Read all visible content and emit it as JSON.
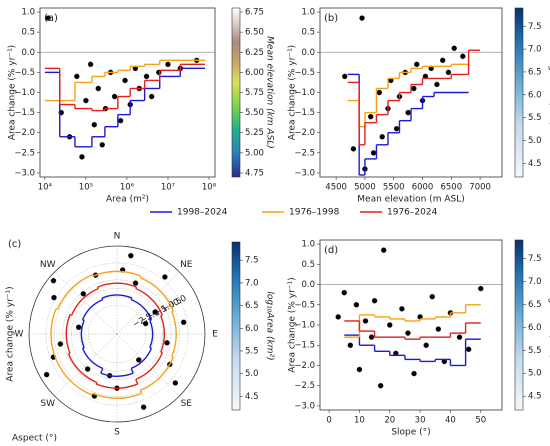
{
  "chart_data": [
    {
      "type": "scatter",
      "label": "(a)",
      "xlabel": "Area (m²)",
      "ylabel": "Area change (% yr⁻¹)",
      "xscale": "log",
      "xlim": [
        7600,
        140000000
      ],
      "xticks": [
        {
          "value": 10000,
          "label": "10⁴"
        },
        {
          "value": 100000,
          "label": "10⁵"
        },
        {
          "value": 1000000,
          "label": "10⁶"
        },
        {
          "value": 10000000,
          "label": "10⁷"
        },
        {
          "value": 100000000,
          "label": "10⁸"
        }
      ],
      "ylim": [
        -3.1,
        1.1
      ],
      "yticks": [
        {
          "value": -3,
          "label": "−3.0"
        },
        {
          "value": -2.5,
          "label": "−2.5"
        },
        {
          "value": -2,
          "label": "−2.0"
        },
        {
          "value": -1.5,
          "label": "−1.5"
        },
        {
          "value": -1,
          "label": "−1.0"
        },
        {
          "value": -0.5,
          "label": "−0.5"
        },
        {
          "value": 0,
          "label": "0.0"
        },
        {
          "value": 0.5,
          "label": "0.5"
        },
        {
          "value": 1,
          "label": "1.0"
        }
      ],
      "hline": 0,
      "colorbar": {
        "label": "Mean elevation (km ASL)",
        "colormap": "terrain",
        "clim": [
          4.7,
          6.8
        ],
        "ticks": [
          4.75,
          {
            "value": 5,
            "label": "5.00"
          },
          5.25,
          {
            "value": 5.5,
            "label": "5.50"
          },
          5.75,
          {
            "value": 6,
            "label": "6.00"
          },
          6.25,
          {
            "value": 6.5,
            "label": "6.50"
          },
          6.75
        ]
      },
      "points": {
        "x": [
          12000,
          25000,
          40000,
          60000,
          80000,
          100000,
          130000,
          160000,
          200000,
          250000,
          300000,
          400000,
          500000,
          700000,
          900000,
          1200000,
          1600000,
          2000000,
          3000000,
          4000000,
          6000000,
          10000000,
          20000000,
          50000000
        ],
        "y": [
          0.85,
          -1.5,
          -2.1,
          -0.6,
          -2.6,
          -1.2,
          -0.3,
          -1.8,
          -0.9,
          -2.3,
          -1.4,
          -0.5,
          -1.1,
          -1.7,
          -0.7,
          -1.3,
          -0.4,
          -0.9,
          -0.6,
          -1.1,
          -0.5,
          -0.3,
          -0.4,
          -0.2
        ],
        "c": [
          4.8,
          5.3,
          5.2,
          5.6,
          5.1,
          5.5,
          6.0,
          5.3,
          5.7,
          5.0,
          5.4,
          6.2,
          5.6,
          5.2,
          5.9,
          5.5,
          6.3,
          5.8,
          6.1,
          5.6,
          6.0,
          6.4,
          6.3,
          6.5
        ]
      },
      "series": [
        {
          "name": "1998–2024",
          "color": "#1a1ad8",
          "bins": [
            10000,
            23000,
            54000,
            140000,
            290000,
            600000,
            1200000,
            2700000,
            6300000,
            20000000,
            80000000
          ],
          "values": [
            -0.5,
            -2.1,
            -2.35,
            -2.1,
            -1.85,
            -1.55,
            -1.2,
            -0.9,
            -0.6,
            -0.4
          ]
        },
        {
          "name": "1976–1998",
          "color": "#f5a219",
          "bins": [
            10000,
            23000,
            54000,
            140000,
            290000,
            600000,
            1200000,
            2700000,
            6300000,
            20000000,
            80000000
          ],
          "values": [
            -1.2,
            -1.2,
            -0.75,
            -0.6,
            -0.5,
            -0.45,
            -0.35,
            -0.3,
            -0.2,
            -0.2
          ]
        },
        {
          "name": "1976–2024",
          "color": "#e3201b",
          "bins": [
            10000,
            23000,
            54000,
            140000,
            290000,
            600000,
            1200000,
            2700000,
            6300000,
            20000000,
            80000000
          ],
          "values": [
            -0.4,
            -1.3,
            -1.4,
            -1.45,
            -1.4,
            -1.1,
            -0.9,
            -0.7,
            -0.45,
            -0.3
          ]
        }
      ]
    },
    {
      "type": "scatter",
      "label": "(b)",
      "xlabel": "Mean elevation (m ASL)",
      "ylabel": "Area change (% yr⁻¹)",
      "xlim": [
        4220,
        7380
      ],
      "xticks": [
        4500,
        5000,
        5500,
        6000,
        6500,
        7000
      ],
      "ylim": [
        -3.1,
        1.1
      ],
      "yticks": [
        {
          "value": -3,
          "label": "−3.0"
        },
        {
          "value": -2.5,
          "label": "−2.5"
        },
        {
          "value": -2,
          "label": "−2.0"
        },
        {
          "value": -1.5,
          "label": "−1.5"
        },
        {
          "value": -1,
          "label": "−1.0"
        },
        {
          "value": -0.5,
          "label": "−0.5"
        },
        {
          "value": 0,
          "label": "0.0"
        },
        {
          "value": 0.5,
          "label": "0.5"
        },
        {
          "value": 1,
          "label": "1.0"
        }
      ],
      "hline": 0,
      "colorbar": {
        "label": "log₁₀Area (km²)",
        "colormap": "blues",
        "clim": [
          4.2,
          7.9
        ],
        "ticks": [
          4.5,
          {
            "value": 5,
            "label": "5.0"
          },
          5.5,
          {
            "value": 6,
            "label": "6.0"
          },
          6.5,
          {
            "value": 7,
            "label": "7.0"
          },
          7.5
        ]
      },
      "points": {
        "x": [
          4650,
          4800,
          4950,
          5000,
          5100,
          5150,
          5250,
          5300,
          5400,
          5450,
          5550,
          5600,
          5700,
          5750,
          5850,
          5900,
          6000,
          6050,
          6150,
          6250,
          6350,
          6450,
          6550,
          6700
        ],
        "y": [
          -0.6,
          -2.4,
          0.85,
          -2.9,
          -1.6,
          -2.5,
          -1.0,
          -2.1,
          -1.4,
          -0.7,
          -1.9,
          -1.1,
          -0.5,
          -1.5,
          -0.9,
          -0.3,
          -1.2,
          -0.6,
          -0.4,
          -0.8,
          -0.2,
          -0.5,
          0.1,
          -0.1
        ],
        "c": [
          6.5,
          5.2,
          4.4,
          4.9,
          5.6,
          4.7,
          6.0,
          5.0,
          5.4,
          6.3,
          4.8,
          5.5,
          6.6,
          5.1,
          5.7,
          6.9,
          5.3,
          6.1,
          6.4,
          5.8,
          7.2,
          6.2,
          6.8,
          7.5
        ]
      },
      "series": [
        {
          "color": "#1a1ad8",
          "bins": [
            4700,
            4900,
            5000,
            5200,
            5400,
            5600,
            5800,
            6000,
            6200,
            6800
          ],
          "values": [
            -0.55,
            -3.05,
            -2.65,
            -2.3,
            -2.0,
            -1.7,
            -1.4,
            -1.1,
            -1.0
          ]
        },
        {
          "color": "#f5a219",
          "bins": [
            4700,
            4900,
            5000,
            5200,
            5400,
            5600,
            5800,
            6000,
            6500,
            6800
          ],
          "values": [
            -1.2,
            -1.85,
            -1.5,
            -0.9,
            -0.65,
            -0.5,
            -0.4,
            -0.35,
            -0.3
          ]
        },
        {
          "color": "#e3201b",
          "bins": [
            4700,
            4900,
            5000,
            5200,
            5400,
            5600,
            5800,
            6000,
            6500,
            6800,
            7000
          ],
          "values": [
            -0.75,
            -2.3,
            -1.75,
            -1.55,
            -1.2,
            -1.0,
            -0.8,
            -0.65,
            -0.55,
            0.05
          ]
        }
      ]
    },
    {
      "type": "polar",
      "label": "(c)",
      "xlabel": "Aspect (°)",
      "ylabel": "Area change (% yr⁻¹)",
      "categories": [
        "N",
        "NE",
        "E",
        "SE",
        "S",
        "SW",
        "W",
        "NW"
      ],
      "rlim": [
        -4.2,
        1
      ],
      "rticks": [
        {
          "value": -2.5,
          "label": "−2.5"
        },
        {
          "value": -2,
          "label": "−2.0"
        },
        {
          "value": -1.5,
          "label": "−1.5"
        },
        {
          "value": -1,
          "label": "−1.0"
        },
        {
          "value": -0.5,
          "label": "−0.5"
        },
        {
          "value": 0,
          "label": "0.0"
        }
      ],
      "colorbar": {
        "label": "log₁₀Area (km²)",
        "colormap": "blues",
        "clim": [
          4.2,
          7.9
        ],
        "ticks": [
          4.5,
          {
            "value": 5,
            "label": "5.0"
          },
          5.5,
          {
            "value": 6,
            "label": "6.0"
          },
          6.5,
          {
            "value": 7,
            "label": "7.0"
          },
          7.5
        ]
      },
      "points": {
        "x": [
          5,
          20,
          40,
          60,
          80,
          100,
          120,
          140,
          160,
          180,
          200,
          220,
          240,
          260,
          280,
          300,
          320,
          340,
          10,
          70,
          130,
          190,
          250,
          310
        ],
        "y": [
          -0.4,
          -1.0,
          0.2,
          -1.6,
          -0.2,
          -1.2,
          -0.6,
          -2.2,
          0.4,
          -1.0,
          -0.3,
          -1.5,
          0.6,
          -0.8,
          -1.9,
          0.1,
          -1.1,
          -0.5,
          0.5,
          -2.4,
          0.3,
          -1.7,
          -0.2,
          0.7
        ],
        "c": [
          5.5,
          4.8,
          6.2,
          5.0,
          6.6,
          5.3,
          5.9,
          4.6,
          7.1,
          5.2,
          6.0,
          4.9,
          7.4,
          5.6,
          4.7,
          6.4,
          5.1,
          5.8,
          7.0,
          4.5,
          6.8,
          4.8,
          6.1,
          7.6
        ]
      },
      "series": [
        {
          "color": "#1a1ad8",
          "values": [
            -1.9,
            -2.0,
            -2.1,
            -2.0,
            -1.7,
            -2.0,
            -2.1,
            -2.0
          ]
        },
        {
          "color": "#f5a219",
          "values": [
            -0.5,
            -0.6,
            -0.7,
            -0.6,
            -0.4,
            -0.3,
            -0.3,
            -0.4
          ]
        },
        {
          "color": "#e3201b",
          "values": [
            -1.2,
            -1.3,
            -1.4,
            -1.3,
            -1.0,
            -1.1,
            -1.2,
            -1.3
          ]
        }
      ]
    },
    {
      "type": "scatter",
      "label": "(d)",
      "xlabel": "Slope (°)",
      "ylabel": "Area change (% yr⁻¹)",
      "xlim": [
        -3,
        57
      ],
      "xticks": [
        0,
        10,
        20,
        30,
        40,
        50
      ],
      "ylim": [
        -3.1,
        1.1
      ],
      "yticks": [
        {
          "value": -3,
          "label": "−3.0"
        },
        {
          "value": -2.5,
          "label": "−2.5"
        },
        {
          "value": -2,
          "label": "−2.0"
        },
        {
          "value": -1.5,
          "label": "−1.5"
        },
        {
          "value": -1,
          "label": "−1.0"
        },
        {
          "value": -0.5,
          "label": "−0.5"
        },
        {
          "value": 0,
          "label": "0.0"
        },
        {
          "value": 0.5,
          "label": "0.5"
        },
        {
          "value": 1,
          "label": "1.0"
        }
      ],
      "hline": 0,
      "colorbar": {
        "label": "log₁₀Area (km²)",
        "colormap": "blues",
        "clim": [
          4.2,
          7.9
        ],
        "ticks": [
          4.5,
          {
            "value": 5,
            "label": "5.0"
          },
          5.5,
          {
            "value": 6,
            "label": "6.0"
          },
          6.5,
          {
            "value": 7,
            "label": "7.0"
          },
          7.5
        ]
      },
      "points": {
        "x": [
          3,
          5,
          7,
          9,
          10,
          12,
          14,
          15,
          17,
          18,
          20,
          22,
          24,
          26,
          28,
          30,
          32,
          34,
          36,
          38,
          40,
          43,
          46,
          50
        ],
        "y": [
          -0.8,
          -0.2,
          -1.5,
          -0.5,
          -2.1,
          -0.9,
          -1.3,
          -0.4,
          -2.5,
          0.85,
          -1.0,
          -1.7,
          -0.6,
          -1.2,
          -2.2,
          -0.8,
          -1.5,
          -0.3,
          -1.1,
          -1.9,
          -0.7,
          -1.3,
          -1.6,
          -0.1
        ],
        "c": [
          7.2,
          7.6,
          5.5,
          6.8,
          4.9,
          6.2,
          5.6,
          7.0,
          4.6,
          4.4,
          5.9,
          5.1,
          6.5,
          5.4,
          4.8,
          6.0,
          5.2,
          6.6,
          5.5,
          5.0,
          6.1,
          5.3,
          5.1,
          6.4
        ]
      },
      "series": [
        {
          "color": "#1a1ad8",
          "bins": [
            5,
            10,
            15,
            20,
            25,
            30,
            35,
            40,
            45,
            50
          ],
          "values": [
            -1.25,
            -1.5,
            -1.65,
            -1.75,
            -1.85,
            -1.9,
            -1.85,
            -2.0,
            -1.35
          ]
        },
        {
          "color": "#f5a219",
          "bins": [
            5,
            10,
            15,
            20,
            25,
            30,
            35,
            40,
            45,
            50
          ],
          "values": [
            -1.3,
            -0.75,
            -0.8,
            -0.85,
            -0.9,
            -0.85,
            -0.8,
            -0.7,
            -0.5
          ]
        },
        {
          "color": "#e3201b",
          "bins": [
            5,
            10,
            15,
            20,
            25,
            30,
            35,
            40,
            45,
            50
          ],
          "values": [
            -0.9,
            -1.15,
            -1.3,
            -1.3,
            -1.35,
            -1.3,
            -1.3,
            -1.2,
            -0.95
          ]
        }
      ]
    }
  ]
}
